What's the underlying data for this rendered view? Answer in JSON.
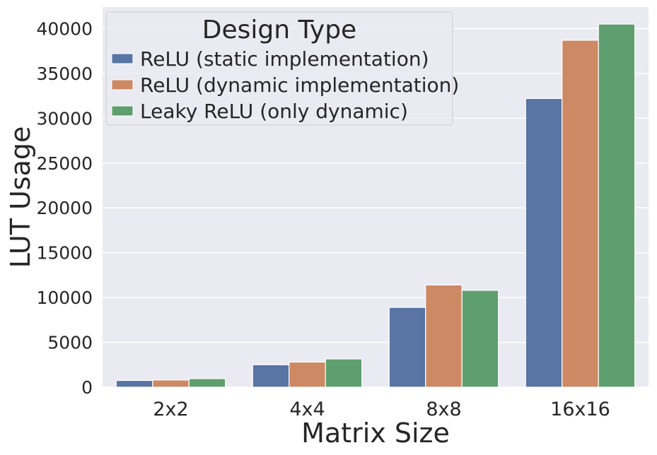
{
  "chart_data": {
    "type": "bar",
    "title": "",
    "xlabel": "Matrix Size",
    "ylabel": "LUT Usage",
    "categories": [
      "2x2",
      "4x4",
      "8x8",
      "16x16"
    ],
    "ylim": [
      0,
      42400
    ],
    "yticks": [
      0,
      5000,
      10000,
      15000,
      20000,
      25000,
      30000,
      35000,
      40000
    ],
    "ytick_labels": [
      "0",
      "5000",
      "10000",
      "15000",
      "20000",
      "25000",
      "30000",
      "35000",
      "40000"
    ],
    "grid": true,
    "legend": {
      "title": "Design Type",
      "placement": "top-left"
    },
    "series": [
      {
        "name": "ReLU (static implementation)",
        "color": "#5875a4",
        "values": [
          750,
          2500,
          8900,
          32200
        ]
      },
      {
        "name": "ReLU (dynamic implementation)",
        "color": "#cc8963",
        "values": [
          800,
          2800,
          11400,
          38700
        ]
      },
      {
        "name": "Leaky ReLU (only dynamic)",
        "color": "#5f9e6e",
        "values": [
          950,
          3150,
          10800,
          40500
        ]
      }
    ],
    "background_color": "#eaeaf2",
    "grid_color": "#ffffff"
  }
}
